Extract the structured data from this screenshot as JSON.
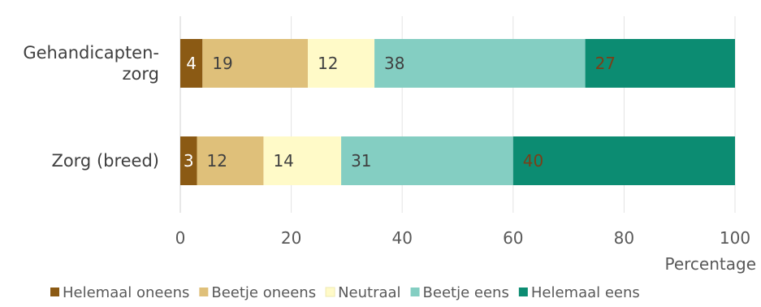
{
  "chart_data": {
    "type": "bar",
    "orientation": "horizontal",
    "stacked": true,
    "categories": [
      "Gehandicapten-zorg",
      "Zorg (breed)"
    ],
    "category_lines": [
      [
        "Gehandicapten-",
        "zorg"
      ],
      [
        "Zorg (breed)"
      ]
    ],
    "series": [
      {
        "name": "Helemaal oneens",
        "values": [
          4,
          3
        ],
        "color": "#8B5A14",
        "label_color": "#ffffff"
      },
      {
        "name": "Beetje oneens",
        "values": [
          19,
          12
        ],
        "color": "#DFC07A",
        "label_color": "#404040"
      },
      {
        "name": "Neutraal",
        "values": [
          12,
          14
        ],
        "color": "#FFFAC8",
        "label_color": "#404040"
      },
      {
        "name": "Beetje eens",
        "values": [
          38,
          31
        ],
        "color": "#84CEC2",
        "label_color": "#404040"
      },
      {
        "name": "Helemaal eens",
        "values": [
          27,
          40
        ],
        "color": "#0C8C72",
        "label_color": "#7A3F18"
      }
    ],
    "xlim": [
      0,
      100
    ],
    "xticks": [
      "0",
      "20",
      "40",
      "60",
      "80",
      "100"
    ],
    "xlabel": "Percentage",
    "grid": true,
    "legend_position": "bottom"
  }
}
